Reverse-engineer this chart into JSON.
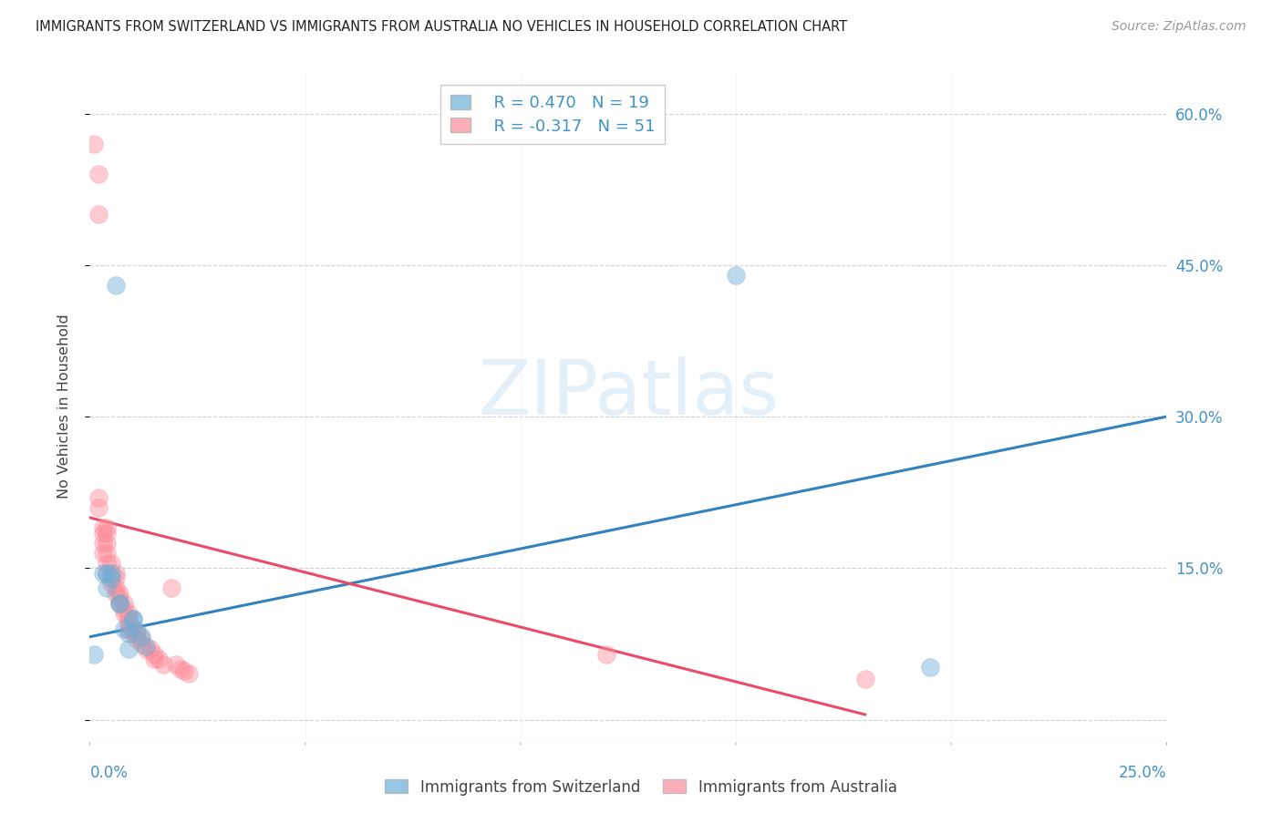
{
  "title": "IMMIGRANTS FROM SWITZERLAND VS IMMIGRANTS FROM AUSTRALIA NO VEHICLES IN HOUSEHOLD CORRELATION CHART",
  "source": "Source: ZipAtlas.com",
  "ylabel": "No Vehicles in Household",
  "yticks": [
    0.0,
    0.15,
    0.3,
    0.45,
    0.6
  ],
  "ytick_labels": [
    "",
    "15.0%",
    "30.0%",
    "45.0%",
    "60.0%"
  ],
  "xlim": [
    0.0,
    0.25
  ],
  "ylim": [
    -0.02,
    0.64
  ],
  "watermark": "ZIPatlas",
  "legend_r1": "R = 0.470",
  "legend_n1": "N = 19",
  "legend_r2": "R = -0.317",
  "legend_n2": "N = 51",
  "blue_color": "#6baed6",
  "pink_color": "#fc8d9a",
  "blue_line_color": "#3182bd",
  "pink_line_color": "#e84c6a",
  "blue_scatter": [
    [
      0.001,
      0.065
    ],
    [
      0.003,
      0.145
    ],
    [
      0.004,
      0.13
    ],
    [
      0.004,
      0.145
    ],
    [
      0.005,
      0.145
    ],
    [
      0.005,
      0.14
    ],
    [
      0.006,
      0.43
    ],
    [
      0.007,
      0.115
    ],
    [
      0.007,
      0.115
    ],
    [
      0.008,
      0.09
    ],
    [
      0.009,
      0.085
    ],
    [
      0.009,
      0.07
    ],
    [
      0.01,
      0.1
    ],
    [
      0.01,
      0.1
    ],
    [
      0.011,
      0.088
    ],
    [
      0.012,
      0.083
    ],
    [
      0.013,
      0.073
    ],
    [
      0.195,
      0.052
    ],
    [
      0.15,
      0.44
    ]
  ],
  "pink_scatter": [
    [
      0.001,
      0.57
    ],
    [
      0.002,
      0.54
    ],
    [
      0.002,
      0.5
    ],
    [
      0.002,
      0.22
    ],
    [
      0.002,
      0.21
    ],
    [
      0.003,
      0.19
    ],
    [
      0.003,
      0.185
    ],
    [
      0.003,
      0.175
    ],
    [
      0.003,
      0.165
    ],
    [
      0.004,
      0.19
    ],
    [
      0.004,
      0.185
    ],
    [
      0.004,
      0.175
    ],
    [
      0.004,
      0.165
    ],
    [
      0.004,
      0.155
    ],
    [
      0.004,
      0.145
    ],
    [
      0.005,
      0.155
    ],
    [
      0.005,
      0.14
    ],
    [
      0.005,
      0.135
    ],
    [
      0.006,
      0.145
    ],
    [
      0.006,
      0.14
    ],
    [
      0.006,
      0.13
    ],
    [
      0.006,
      0.125
    ],
    [
      0.007,
      0.125
    ],
    [
      0.007,
      0.12
    ],
    [
      0.007,
      0.115
    ],
    [
      0.008,
      0.115
    ],
    [
      0.008,
      0.11
    ],
    [
      0.008,
      0.105
    ],
    [
      0.009,
      0.105
    ],
    [
      0.009,
      0.1
    ],
    [
      0.009,
      0.095
    ],
    [
      0.009,
      0.09
    ],
    [
      0.01,
      0.09
    ],
    [
      0.01,
      0.085
    ],
    [
      0.011,
      0.085
    ],
    [
      0.011,
      0.08
    ],
    [
      0.012,
      0.08
    ],
    [
      0.012,
      0.075
    ],
    [
      0.013,
      0.07
    ],
    [
      0.014,
      0.07
    ],
    [
      0.015,
      0.065
    ],
    [
      0.015,
      0.06
    ],
    [
      0.016,
      0.06
    ],
    [
      0.017,
      0.055
    ],
    [
      0.019,
      0.13
    ],
    [
      0.02,
      0.055
    ],
    [
      0.021,
      0.05
    ],
    [
      0.022,
      0.048
    ],
    [
      0.023,
      0.046
    ],
    [
      0.12,
      0.065
    ],
    [
      0.18,
      0.04
    ]
  ],
  "blue_line": [
    [
      0.0,
      0.082
    ],
    [
      0.25,
      0.3
    ]
  ],
  "pink_line": [
    [
      0.0,
      0.2
    ],
    [
      0.18,
      0.005
    ]
  ]
}
